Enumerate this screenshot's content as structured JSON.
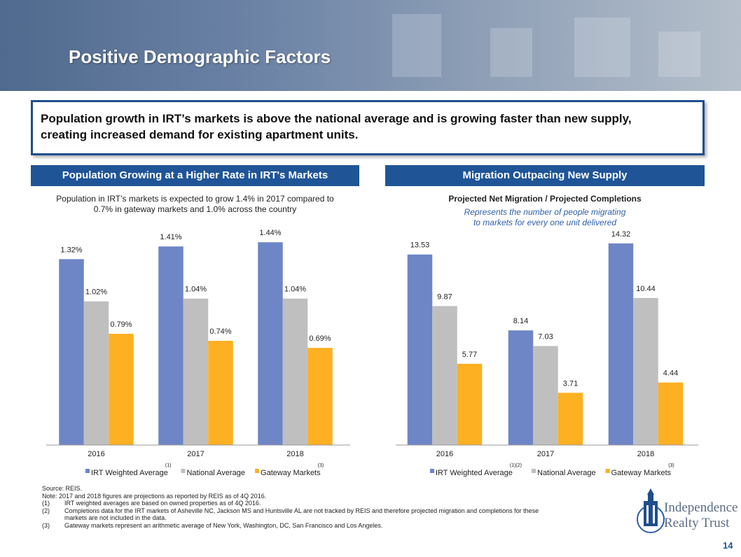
{
  "header": {
    "title": "Positive Demographic Factors"
  },
  "headline": [
    "Population growth in IRT’s markets is above the national average and is growing faster than new supply,",
    "creating increased demand for existing apartment units."
  ],
  "chart_data": [
    {
      "type": "bar",
      "heading": "Population Growing at a Higher Rate in IRT's Markets",
      "subtitle": [
        "Population in IRT’s markets is expected to grow 1.4% in 2017 compared to",
        "0.7% in gateway markets and 1.0% across the country"
      ],
      "categories": [
        "2016",
        "2017",
        "2018"
      ],
      "series": [
        {
          "name": "IRT Weighted Average",
          "note": "(1)",
          "color": "#6e86c6",
          "values": [
            1.32,
            1.41,
            1.44
          ],
          "value_labels": [
            "1.32%",
            "1.41%",
            "1.44%"
          ]
        },
        {
          "name": "National Average",
          "color": "#bfbfbf",
          "values": [
            1.02,
            1.04,
            1.04
          ],
          "value_labels": [
            "1.02%",
            "1.04%",
            "1.04%"
          ]
        },
        {
          "name": "Gateway Markets",
          "note": "(3)",
          "color": "#fdb022",
          "values": [
            0.79,
            0.74,
            0.69
          ],
          "value_labels": [
            "0.79%",
            "0.74%",
            "0.69%"
          ]
        }
      ],
      "ylim": [
        0,
        1.6
      ]
    },
    {
      "type": "bar",
      "heading": "Migration Outpacing New Supply",
      "title": "Projected Net Migration / Projected Completions",
      "subtitle": [
        "Represents the number of people migrating",
        "to markets for every one unit delivered"
      ],
      "categories": [
        "2016",
        "2017",
        "2018"
      ],
      "series": [
        {
          "name": "IRT Weighted Average",
          "note": "(1)(2)",
          "color": "#6e86c6",
          "values": [
            13.53,
            8.14,
            14.32
          ]
        },
        {
          "name": "National Average",
          "color": "#bfbfbf",
          "values": [
            9.87,
            7.03,
            10.44
          ]
        },
        {
          "name": "Gateway Markets",
          "note": "(3)",
          "color": "#fdb022",
          "values": [
            5.77,
            3.71,
            4.44
          ]
        }
      ],
      "ylim": [
        0,
        16
      ]
    }
  ],
  "footnotes": {
    "source": "Source: REIS.",
    "note": "Note: 2017 and 2018 figures are projections as reported by REIS as of 4Q 2016.",
    "items": [
      {
        "num": "(1)",
        "text": "IRT weighted averages are based on owned properties as of 4Q 2016."
      },
      {
        "num": "(2)",
        "text": "Completions data for the IRT markets of Asheville NC, Jackson MS and Huntsville AL are not tracked by REIS and therefore projected migration and completions for these markets are not included in the data."
      },
      {
        "num": "(3)",
        "text": "Gateway markets represent an arithmetic average of New York, Washington, DC, San Francisco and Los Angeles."
      }
    ]
  },
  "logo": {
    "line1": "Independence",
    "line2": "Realty Trust"
  },
  "page_number": "14"
}
